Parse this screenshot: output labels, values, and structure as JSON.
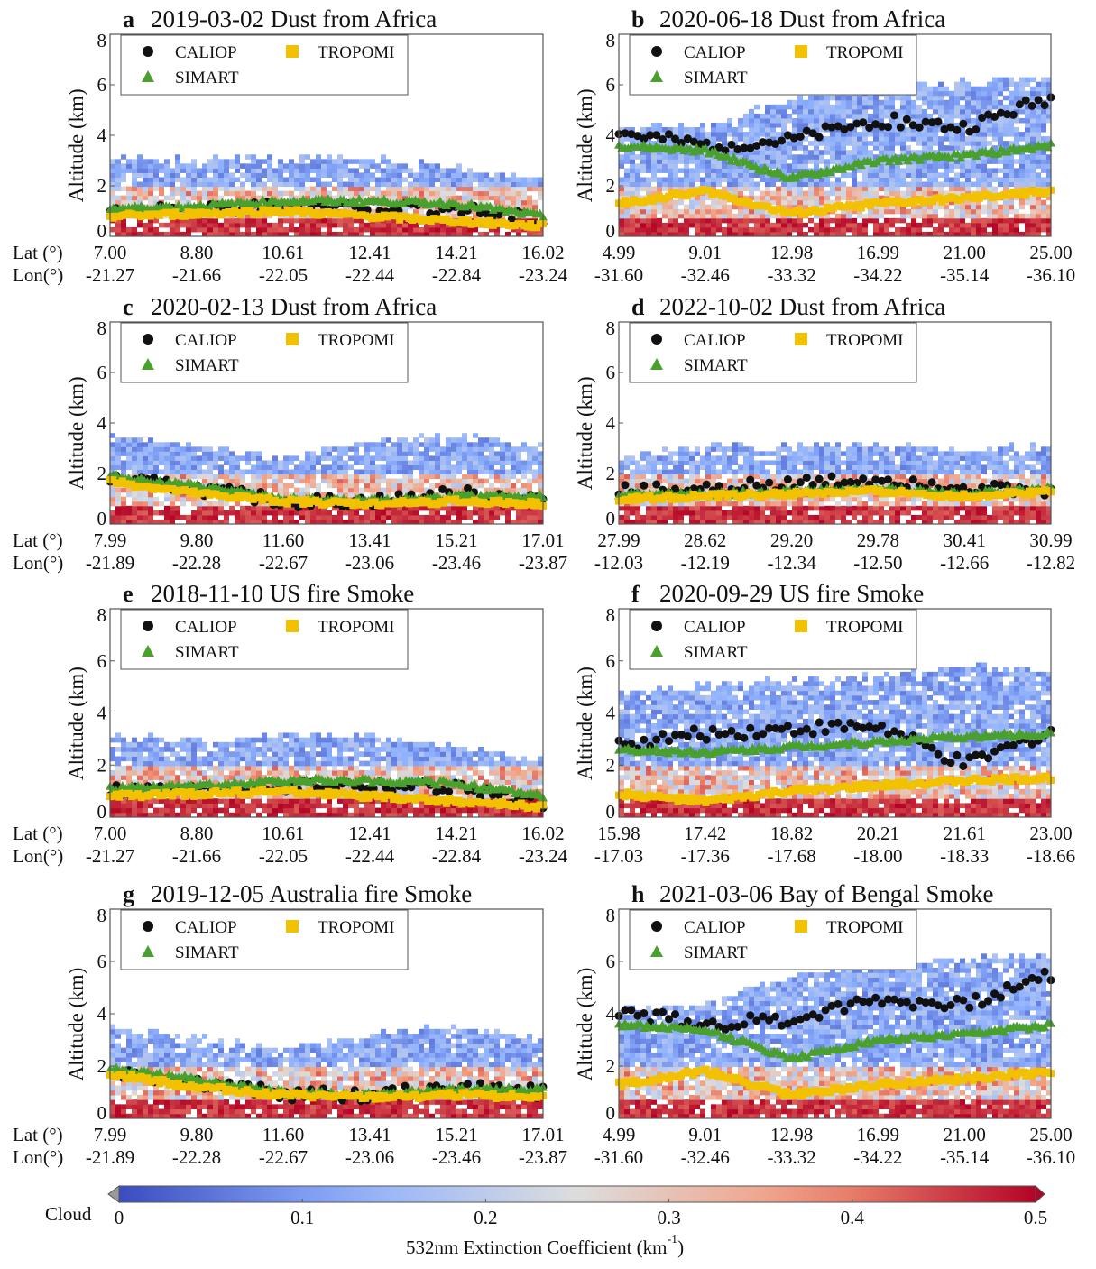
{
  "figure": {
    "colorbar": {
      "label": "532nm Extinction Coefficient (km",
      "label_exp": "-1",
      "label_close": ")",
      "cloud_label": "Cloud",
      "ticks": [
        "0",
        "0.1",
        "0.2",
        "0.3",
        "0.4",
        "0.5"
      ],
      "range": [
        0,
        0.5
      ],
      "colormap": "coolwarm",
      "cloud_color": "#9a9a9a"
    },
    "row_labels": {
      "lat": "Lat (°)",
      "lon": "Lon(°)"
    }
  },
  "chart_data": [
    {
      "type": "scatter",
      "panel": "a",
      "title": "2019-03-02 Dust from Africa",
      "ylabel": "Altitude (km)",
      "ylim": [
        0,
        8
      ],
      "yticks": [
        "0",
        "2",
        "4",
        "6",
        "8"
      ],
      "lat_ticks": [
        "7.00",
        "8.80",
        "10.61",
        "12.41",
        "14.21",
        "16.02"
      ],
      "lon_ticks": [
        "-21.27",
        "-21.66",
        "-22.05",
        "-22.44",
        "-22.84",
        "-23.24"
      ],
      "legend": [
        "CALIOP",
        "TROPOMI",
        "SIMART"
      ],
      "legend_position": "top-left",
      "series": [
        {
          "name": "CALIOP",
          "color": "#111111",
          "values": [
            1.0,
            1.0,
            1.2,
            1.2,
            1.1,
            0.6
          ]
        },
        {
          "name": "SIMART",
          "color": "#4aa02c",
          "values": [
            1.1,
            1.2,
            1.4,
            1.4,
            1.3,
            0.8
          ]
        },
        {
          "name": "TROPOMI",
          "color": "#f2c200",
          "values": [
            0.8,
            0.9,
            1.0,
            0.8,
            0.6,
            0.4
          ]
        }
      ],
      "extinction_layer_top_km": [
        3.0,
        2.9,
        3.1,
        3.0,
        2.6,
        2.2
      ]
    },
    {
      "type": "scatter",
      "panel": "b",
      "title": "2020-06-18 Dust from Africa",
      "ylabel": "Altitude (km)",
      "ylim": [
        0,
        8
      ],
      "yticks": [
        "0",
        "2",
        "4",
        "6",
        "8"
      ],
      "lat_ticks": [
        "4.99",
        "9.01",
        "12.98",
        "16.99",
        "21.00",
        "25.00"
      ],
      "lon_ticks": [
        "-31.60",
        "-32.46",
        "-33.32",
        "-34.22",
        "-35.14",
        "-36.10"
      ],
      "legend": [
        "CALIOP",
        "TROPOMI",
        "SIMART"
      ],
      "legend_position": "top-left",
      "series": [
        {
          "name": "CALIOP",
          "color": "#111111",
          "values": [
            4.1,
            3.6,
            3.8,
            4.6,
            4.3,
            5.5
          ]
        },
        {
          "name": "SIMART",
          "color": "#4aa02c",
          "values": [
            3.6,
            3.4,
            2.3,
            3.0,
            3.2,
            3.6
          ]
        },
        {
          "name": "TROPOMI",
          "color": "#f2c200",
          "values": [
            1.3,
            1.8,
            0.9,
            1.3,
            1.5,
            1.8
          ]
        }
      ],
      "extinction_layer_top_km": [
        4.2,
        4.3,
        5.4,
        5.8,
        6.0,
        6.2
      ]
    },
    {
      "type": "scatter",
      "panel": "c",
      "title": "2020-02-13 Dust from Africa",
      "ylabel": "Altitude (km)",
      "ylim": [
        0,
        8
      ],
      "yticks": [
        "0",
        "2",
        "4",
        "6",
        "8"
      ],
      "lat_ticks": [
        "7.99",
        "9.80",
        "11.60",
        "13.41",
        "15.21",
        "17.01"
      ],
      "lon_ticks": [
        "-21.89",
        "-22.28",
        "-22.67",
        "-23.06",
        "-23.46",
        "-23.87"
      ],
      "legend": [
        "CALIOP",
        "TROPOMI",
        "SIMART"
      ],
      "legend_position": "top-left",
      "series": [
        {
          "name": "CALIOP",
          "color": "#111111",
          "values": [
            1.8,
            1.4,
            0.9,
            0.9,
            1.2,
            1.0
          ]
        },
        {
          "name": "SIMART",
          "color": "#4aa02c",
          "values": [
            1.9,
            1.5,
            1.0,
            0.9,
            1.1,
            1.1
          ]
        },
        {
          "name": "TROPOMI",
          "color": "#f2c200",
          "values": [
            1.7,
            1.2,
            0.9,
            0.8,
            0.9,
            0.8
          ]
        }
      ],
      "extinction_layer_top_km": [
        3.4,
        3.0,
        2.5,
        3.2,
        3.4,
        3.0
      ]
    },
    {
      "type": "scatter",
      "panel": "d",
      "title": "2022-10-02 Dust from Africa",
      "ylabel": "Altitude (km)",
      "ylim": [
        0,
        8
      ],
      "yticks": [
        "0",
        "2",
        "4",
        "6",
        "8"
      ],
      "lat_ticks": [
        "27.99",
        "28.62",
        "29.20",
        "29.78",
        "30.41",
        "30.99"
      ],
      "lon_ticks": [
        "-12.03",
        "-12.19",
        "-12.34",
        "-12.50",
        "-12.66",
        "-12.82"
      ],
      "legend": [
        "CALIOP",
        "TROPOMI",
        "SIMART"
      ],
      "legend_position": "top-left",
      "series": [
        {
          "name": "CALIOP",
          "color": "#111111",
          "values": [
            1.3,
            1.4,
            1.6,
            1.8,
            1.5,
            1.2
          ]
        },
        {
          "name": "SIMART",
          "color": "#4aa02c",
          "values": [
            1.2,
            1.2,
            1.3,
            1.4,
            1.2,
            1.4
          ]
        },
        {
          "name": "TROPOMI",
          "color": "#f2c200",
          "values": [
            1.0,
            1.1,
            1.2,
            1.3,
            1.1,
            1.3
          ]
        }
      ],
      "extinction_layer_top_km": [
        2.6,
        3.0,
        3.0,
        3.1,
        2.9,
        3.0
      ]
    },
    {
      "type": "scatter",
      "panel": "e",
      "title": "2018-11-10 US fire Smoke",
      "ylabel": "Altitude (km)",
      "ylim": [
        0,
        8
      ],
      "yticks": [
        "0",
        "2",
        "4",
        "6",
        "8"
      ],
      "lat_ticks": [
        "7.00",
        "8.80",
        "10.61",
        "12.41",
        "14.21",
        "16.02"
      ],
      "lon_ticks": [
        "-21.27",
        "-21.66",
        "-22.05",
        "-22.44",
        "-22.84",
        "-23.24"
      ],
      "legend": [
        "CALIOP",
        "TROPOMI",
        "SIMART"
      ],
      "legend_position": "top-left",
      "series": [
        {
          "name": "CALIOP",
          "color": "#111111",
          "values": [
            1.0,
            1.0,
            1.2,
            1.2,
            1.1,
            0.6
          ]
        },
        {
          "name": "SIMART",
          "color": "#4aa02c",
          "values": [
            1.1,
            1.2,
            1.4,
            1.4,
            1.3,
            0.8
          ]
        },
        {
          "name": "TROPOMI",
          "color": "#f2c200",
          "values": [
            0.8,
            0.9,
            1.0,
            0.8,
            0.6,
            0.4
          ]
        }
      ],
      "extinction_layer_top_km": [
        3.0,
        2.9,
        3.1,
        3.0,
        2.6,
        2.2
      ]
    },
    {
      "type": "scatter",
      "panel": "f",
      "title": "2020-09-29 US fire Smoke",
      "ylabel": "Altitude (km)",
      "ylim": [
        0,
        8
      ],
      "yticks": [
        "0",
        "2",
        "4",
        "6",
        "8"
      ],
      "lat_ticks": [
        "15.98",
        "17.42",
        "18.82",
        "20.21",
        "21.61",
        "23.00"
      ],
      "lon_ticks": [
        "-17.03",
        "-17.36",
        "-17.68",
        "-18.00",
        "-18.33",
        "-18.66"
      ],
      "legend": [
        "CALIOP",
        "TROPOMI",
        "SIMART"
      ],
      "legend_position": "top-left",
      "series": [
        {
          "name": "CALIOP",
          "color": "#111111",
          "values": [
            2.8,
            3.2,
            3.4,
            3.5,
            2.0,
            3.3
          ]
        },
        {
          "name": "SIMART",
          "color": "#4aa02c",
          "values": [
            2.6,
            2.5,
            2.7,
            2.9,
            3.1,
            3.2
          ]
        },
        {
          "name": "TROPOMI",
          "color": "#f2c200",
          "values": [
            0.9,
            0.6,
            1.0,
            1.2,
            1.4,
            1.5
          ]
        }
      ],
      "extinction_layer_top_km": [
        4.7,
        5.0,
        5.2,
        5.3,
        5.8,
        5.4
      ]
    },
    {
      "type": "scatter",
      "panel": "g",
      "title": "2019-12-05 Australia fire Smoke",
      "ylabel": "Altitude (km)",
      "ylim": [
        0,
        8
      ],
      "yticks": [
        "0",
        "2",
        "4",
        "6",
        "8"
      ],
      "lat_ticks": [
        "7.99",
        "9.80",
        "11.60",
        "13.41",
        "15.21",
        "17.01"
      ],
      "lon_ticks": [
        "-21.89",
        "-22.28",
        "-22.67",
        "-23.06",
        "-23.46",
        "-23.87"
      ],
      "legend": [
        "CALIOP",
        "TROPOMI",
        "SIMART"
      ],
      "legend_position": "top-left",
      "series": [
        {
          "name": "CALIOP",
          "color": "#111111",
          "values": [
            1.8,
            1.4,
            0.9,
            0.9,
            1.2,
            1.0
          ]
        },
        {
          "name": "SIMART",
          "color": "#4aa02c",
          "values": [
            1.9,
            1.5,
            1.0,
            0.9,
            1.1,
            1.1
          ]
        },
        {
          "name": "TROPOMI",
          "color": "#f2c200",
          "values": [
            1.7,
            1.2,
            0.9,
            0.8,
            0.9,
            0.8
          ]
        }
      ],
      "extinction_layer_top_km": [
        3.4,
        3.0,
        2.5,
        3.2,
        3.4,
        3.0
      ]
    },
    {
      "type": "scatter",
      "panel": "h",
      "title": "2021-03-06 Bay of Bengal Smoke",
      "ylabel": "Altitude (km)",
      "ylim": [
        0,
        8
      ],
      "yticks": [
        "0",
        "2",
        "4",
        "6",
        "8"
      ],
      "lat_ticks": [
        "4.99",
        "9.01",
        "12.98",
        "16.99",
        "21.00",
        "25.00"
      ],
      "lon_ticks": [
        "-31.60",
        "-32.46",
        "-33.32",
        "-34.22",
        "-35.14",
        "-36.10"
      ],
      "legend": [
        "CALIOP",
        "TROPOMI",
        "SIMART"
      ],
      "legend_position": "top-left",
      "series": [
        {
          "name": "CALIOP",
          "color": "#111111",
          "values": [
            4.1,
            3.6,
            3.8,
            4.6,
            4.3,
            5.5
          ]
        },
        {
          "name": "SIMART",
          "color": "#4aa02c",
          "values": [
            3.6,
            3.4,
            2.3,
            3.0,
            3.2,
            3.6
          ]
        },
        {
          "name": "TROPOMI",
          "color": "#f2c200",
          "values": [
            1.3,
            1.8,
            0.9,
            1.3,
            1.5,
            1.8
          ]
        }
      ],
      "extinction_layer_top_km": [
        4.2,
        4.3,
        5.4,
        5.8,
        6.0,
        6.2
      ]
    }
  ]
}
